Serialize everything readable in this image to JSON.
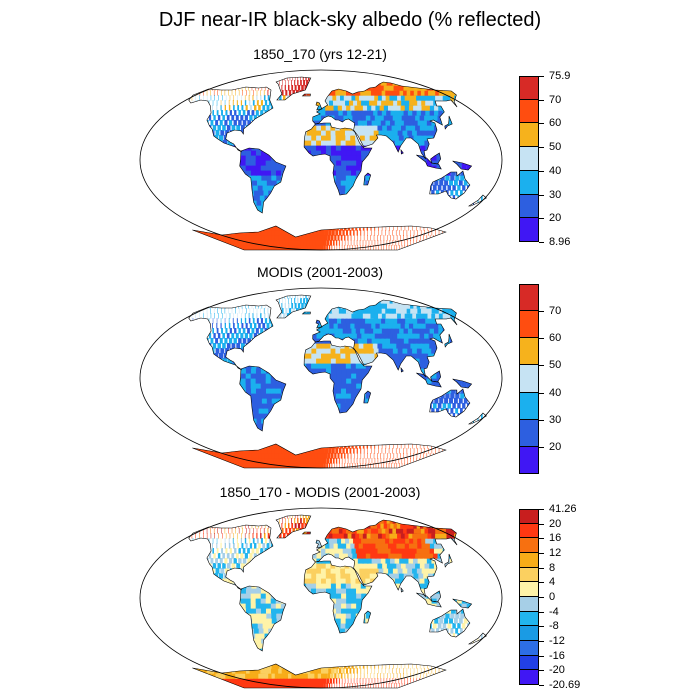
{
  "title": "DJF near-IR black-sky albedo (% reflected)",
  "colors": {
    "ocean": "#ffffff",
    "outline": "#000000",
    "seq": [
      "#4017f4",
      "#2d5fe0",
      "#1bb0ee",
      "#c6e3f3",
      "#f6b21c",
      "#ff4d10",
      "#d72a26"
    ],
    "diff": [
      "#4017f4",
      "#2240e6",
      "#2d6ee6",
      "#1a9be4",
      "#22b5ee",
      "#a6cfe7",
      "#fff3a8",
      "#fbd060",
      "#f7ac18",
      "#f77010",
      "#ff3812",
      "#c81e1e"
    ]
  },
  "panels": [
    {
      "id": "model",
      "title": "1850_170 (yrs 12-21)",
      "colorbar": {
        "labels": [
          "75.9",
          "70",
          "60",
          "50",
          "40",
          "30",
          "20",
          "8.96"
        ]
      }
    },
    {
      "id": "obs",
      "title": "MODIS (2001-2003)",
      "colorbar": {
        "labels": [
          "70",
          "60",
          "50",
          "40",
          "30",
          "20"
        ]
      }
    },
    {
      "id": "diff",
      "title": "1850_170 - MODIS (2001-2003)",
      "colorbar": {
        "labels": [
          "41.26",
          "20",
          "16",
          "12",
          "8",
          "4",
          "0",
          "-4",
          "-8",
          "-12",
          "-16",
          "-20",
          "-20.69"
        ]
      }
    }
  ]
}
